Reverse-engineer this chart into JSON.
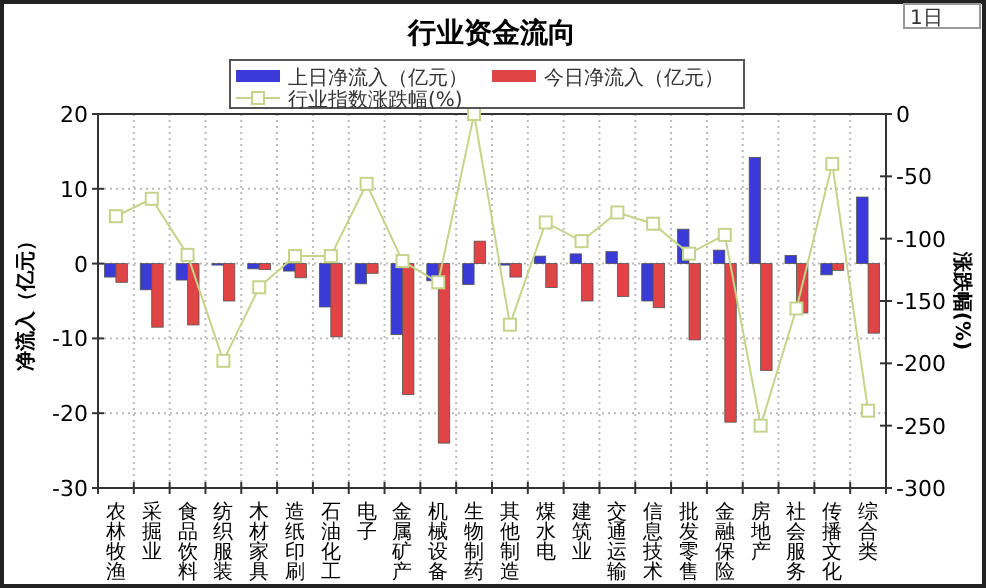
{
  "chart_data": {
    "type": "bar",
    "title": "行业资金流向",
    "ylabel": "净流入（亿元）",
    "y2label": "涨跌幅(%)",
    "annotations": [
      "1日"
    ],
    "categories": [
      "农林牧渔",
      "采掘业",
      "食品饮料",
      "纺织服装",
      "木材家具",
      "造纸印刷",
      "石油化工",
      "电子",
      "金属矿产",
      "机械设备",
      "生物制药",
      "其他制造",
      "煤水电",
      "建筑业",
      "交通运输",
      "信息技术",
      "批发零售",
      "金融保险",
      "房地产",
      "社会服务",
      "传播文化",
      "综合类"
    ],
    "series": [
      {
        "name": "上日净流入（亿元）",
        "color": "#3a3ad8",
        "values": [
          -1.8,
          -3.5,
          -2.2,
          -0.2,
          -0.7,
          -1,
          -5.8,
          -2.7,
          -9.5,
          -2.3,
          -2.8,
          -0.2,
          1.0,
          1.3,
          1.6,
          -5,
          4.6,
          1.8,
          14.2,
          1.1,
          -1.5,
          8.9
        ]
      },
      {
        "name": "今日净流入（亿元）",
        "color": "#e04444",
        "values": [
          -2.5,
          -8.5,
          -8.2,
          -5,
          -0.8,
          -1.9,
          -9.8,
          -1.3,
          -17.5,
          -24,
          3,
          -1.8,
          -3.2,
          -5,
          -4.4,
          -5.9,
          -10.2,
          -21.2,
          -14.3,
          -6.6,
          -0.9,
          -9.3
        ]
      },
      {
        "name": "行业指数涨跌幅(%)",
        "type": "line",
        "axis": "y2",
        "color": "#c4d48a",
        "values": [
          -82,
          -68,
          -113,
          -198,
          -139,
          -114,
          -114,
          -56,
          -118,
          -135,
          0,
          -169,
          -87,
          -102,
          -79,
          -88,
          -112,
          -97,
          -250,
          -156,
          -40,
          -238
        ]
      }
    ],
    "ylim": [
      -30,
      20
    ],
    "yticks": [
      -30,
      -20,
      -10,
      0,
      10,
      20
    ],
    "y2lim": [
      -300,
      0
    ],
    "y2ticks": [
      -300,
      -250,
      -200,
      -150,
      -100,
      -50,
      0
    ],
    "grid": true,
    "legend": "top",
    "marker": "square"
  }
}
